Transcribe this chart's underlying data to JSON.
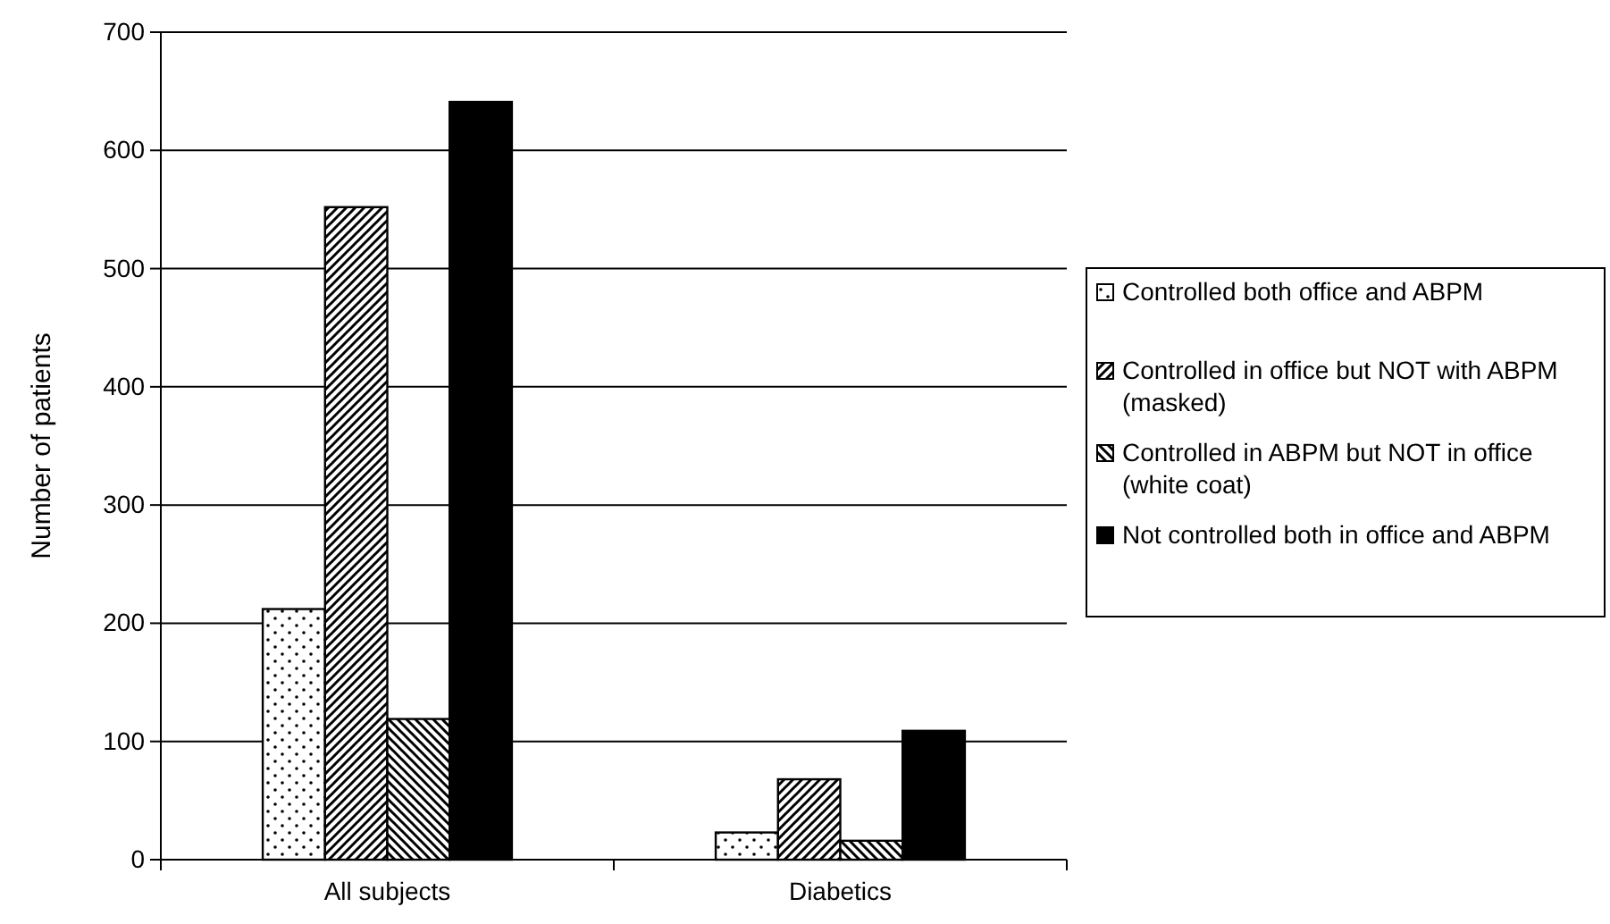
{
  "chart_data": {
    "type": "bar",
    "ylabel": "Number of patients",
    "categories": [
      "All subjects",
      "Diabetics"
    ],
    "series": [
      {
        "name": "Controlled both office and ABPM",
        "color": "#000000",
        "values": [
          212,
          23
        ]
      },
      {
        "name": "Controlled in office but NOT with ABPM (masked)",
        "color": "#000000",
        "values": [
          552,
          68
        ]
      },
      {
        "name": "Controlled in ABPM but NOT in office (white coat)",
        "color": "#000000",
        "values": [
          119,
          16
        ]
      },
      {
        "name": "Not controlled both in office and ABPM",
        "color": "#000000",
        "values": [
          641,
          109
        ]
      }
    ],
    "ylim": [
      0,
      700
    ],
    "yticks": [
      0,
      100,
      200,
      300,
      400,
      500,
      600,
      700
    ],
    "grid": "y",
    "legend": "right"
  }
}
